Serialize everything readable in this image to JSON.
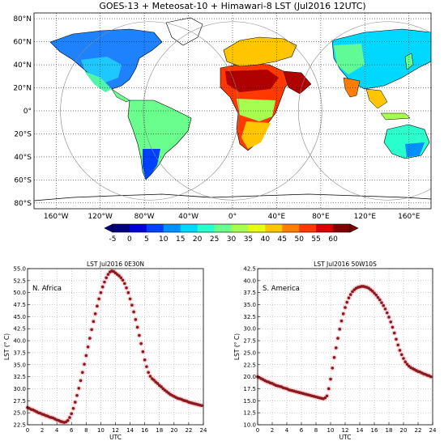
{
  "map": {
    "title": "GOES-13 + Meteosat-10 + Himawari-8 LST (Jul2016 12UTC)",
    "lon_ticks": [
      "160°W",
      "120°W",
      "80°W",
      "40°W",
      "0°",
      "40°E",
      "80°E",
      "120°E",
      "160°E"
    ],
    "lat_ticks": [
      "80°N",
      "60°N",
      "40°N",
      "20°N",
      "0°",
      "20°S",
      "40°S",
      "60°S",
      "80°S"
    ],
    "lon_values": [
      -160,
      -120,
      -80,
      -40,
      0,
      40,
      80,
      120,
      160
    ],
    "lat_values": [
      80,
      60,
      40,
      20,
      0,
      -20,
      -40,
      -60,
      -80
    ],
    "satellite_disk_centres_lon": [
      -75,
      0,
      140.7
    ]
  },
  "colorbar": {
    "ticks": [
      "-5",
      "0",
      "5",
      "10",
      "15",
      "20",
      "25",
      "30",
      "35",
      "40",
      "45",
      "50",
      "55",
      "60"
    ],
    "values": [
      -5,
      0,
      5,
      10,
      15,
      20,
      25,
      30,
      35,
      40,
      45,
      50,
      55,
      60
    ],
    "colors": [
      "#00007f",
      "#0000d8",
      "#0040ff",
      "#0090ff",
      "#00d8ff",
      "#29ffcd",
      "#6aff8c",
      "#a6ff50",
      "#e4ff13",
      "#ffc600",
      "#ff7e00",
      "#ff3900",
      "#d80000",
      "#7f0000"
    ]
  },
  "chart_data": [
    {
      "type": "scatter",
      "title": "LST Jul2016  0E30N",
      "annotation": "N. Africa",
      "xlabel": "UTC",
      "ylabel": "LST (° C)",
      "xlim": [
        0,
        24
      ],
      "ylim": [
        22.5,
        55.0
      ],
      "xticks": [
        0,
        2,
        4,
        6,
        8,
        10,
        12,
        14,
        16,
        18,
        20,
        22,
        24
      ],
      "yticks": [
        22.5,
        25.0,
        27.5,
        30.0,
        32.5,
        35.0,
        37.5,
        40.0,
        42.5,
        45.0,
        47.5,
        50.0,
        52.5,
        55.0
      ],
      "grid": true,
      "marker_color": "#8b1a1a",
      "x": [
        0,
        0.25,
        0.5,
        0.75,
        1,
        1.25,
        1.5,
        1.75,
        2,
        2.25,
        2.5,
        2.75,
        3,
        3.25,
        3.5,
        3.75,
        4,
        4.25,
        4.5,
        4.75,
        5,
        5.25,
        5.5,
        5.75,
        6,
        6.25,
        6.5,
        6.75,
        7,
        7.25,
        7.5,
        7.75,
        8,
        8.25,
        8.5,
        8.75,
        9,
        9.25,
        9.5,
        9.75,
        10,
        10.25,
        10.5,
        10.75,
        11,
        11.25,
        11.5,
        11.75,
        12,
        12.25,
        12.5,
        12.75,
        13,
        13.25,
        13.5,
        13.75,
        14,
        14.25,
        14.5,
        14.75,
        15,
        15.25,
        15.5,
        15.75,
        16,
        16.25,
        16.5,
        16.75,
        17,
        17.25,
        17.5,
        17.75,
        18,
        18.25,
        18.5,
        18.75,
        19,
        19.25,
        19.5,
        19.75,
        20,
        20.25,
        20.5,
        20.75,
        21,
        21.25,
        21.5,
        21.75,
        22,
        22.25,
        22.5,
        22.75,
        23,
        23.25,
        23.5,
        23.75
      ],
      "y": [
        26.1,
        25.9,
        25.7,
        25.6,
        25.4,
        25.2,
        25.0,
        24.9,
        24.7,
        24.6,
        24.4,
        24.3,
        24.1,
        24.0,
        23.9,
        23.7,
        23.5,
        23.4,
        23.2,
        23.1,
        23.0,
        23.1,
        23.4,
        24.0,
        24.8,
        25.9,
        27.2,
        28.6,
        30.1,
        31.7,
        33.4,
        35.1,
        36.9,
        38.7,
        40.5,
        42.3,
        44.0,
        45.6,
        47.2,
        48.7,
        50.0,
        51.2,
        52.2,
        53.1,
        53.8,
        54.3,
        54.5,
        54.4,
        54.1,
        53.8,
        53.5,
        53.1,
        52.6,
        51.9,
        51.0,
        50.0,
        48.7,
        47.4,
        46.0,
        44.4,
        42.8,
        41.1,
        39.4,
        37.7,
        36.0,
        34.6,
        33.4,
        32.6,
        32.1,
        31.8,
        31.4,
        31.1,
        30.7,
        30.4,
        30.0,
        29.7,
        29.4,
        29.1,
        28.8,
        28.6,
        28.4,
        28.2,
        28.0,
        27.9,
        27.8,
        27.6,
        27.5,
        27.4,
        27.2,
        27.1,
        27.0,
        26.9,
        26.8,
        26.7,
        26.6,
        26.5
      ]
    },
    {
      "type": "scatter",
      "title": "LST Jul2016  50W10S",
      "annotation": "S. America",
      "xlabel": "UTC",
      "ylabel": "LST (° C)",
      "xlim": [
        0,
        24
      ],
      "ylim": [
        10.0,
        42.5
      ],
      "xticks": [
        0,
        2,
        4,
        6,
        8,
        10,
        12,
        14,
        16,
        18,
        20,
        22,
        24
      ],
      "yticks": [
        10.0,
        12.5,
        15.0,
        17.5,
        20.0,
        22.5,
        25.0,
        27.5,
        30.0,
        32.5,
        35.0,
        37.5,
        40.0,
        42.5
      ],
      "grid": true,
      "marker_color": "#8b1a1a",
      "x": [
        0,
        0.25,
        0.5,
        0.75,
        1,
        1.25,
        1.5,
        1.75,
        2,
        2.25,
        2.5,
        2.75,
        3,
        3.25,
        3.5,
        3.75,
        4,
        4.25,
        4.5,
        4.75,
        5,
        5.25,
        5.5,
        5.75,
        6,
        6.25,
        6.5,
        6.75,
        7,
        7.25,
        7.5,
        7.75,
        8,
        8.25,
        8.5,
        8.75,
        9,
        9.25,
        9.5,
        9.75,
        10,
        10.25,
        10.5,
        10.75,
        11,
        11.25,
        11.5,
        11.75,
        12,
        12.25,
        12.5,
        12.75,
        13,
        13.25,
        13.5,
        13.75,
        14,
        14.25,
        14.5,
        14.75,
        15,
        15.25,
        15.5,
        15.75,
        16,
        16.25,
        16.5,
        16.75,
        17,
        17.25,
        17.5,
        17.75,
        18,
        18.25,
        18.5,
        18.75,
        19,
        19.25,
        19.5,
        19.75,
        20,
        20.25,
        20.5,
        20.75,
        21,
        21.25,
        21.5,
        21.75,
        22,
        22.25,
        22.5,
        22.75,
        23,
        23.25,
        23.5,
        23.75
      ],
      "y": [
        20.0,
        19.8,
        19.6,
        19.4,
        19.2,
        19.0,
        18.9,
        18.7,
        18.6,
        18.4,
        18.2,
        18.1,
        18.0,
        17.9,
        17.7,
        17.6,
        17.5,
        17.3,
        17.2,
        17.1,
        17.0,
        16.9,
        16.8,
        16.7,
        16.6,
        16.5,
        16.4,
        16.3,
        16.2,
        16.1,
        16.0,
        15.9,
        15.8,
        15.7,
        15.6,
        15.5,
        15.4,
        15.6,
        16.0,
        17.5,
        19.5,
        21.8,
        24.0,
        26.0,
        28.0,
        29.9,
        31.6,
        33.1,
        34.4,
        35.5,
        36.4,
        37.1,
        37.7,
        38.1,
        38.4,
        38.6,
        38.7,
        38.8,
        38.8,
        38.7,
        38.6,
        38.4,
        38.1,
        37.8,
        37.4,
        37.0,
        36.5,
        36.0,
        35.4,
        34.8,
        34.1,
        33.3,
        32.4,
        31.4,
        30.3,
        29.1,
        27.8,
        26.6,
        25.5,
        24.6,
        23.8,
        23.1,
        22.6,
        22.2,
        21.9,
        21.7,
        21.5,
        21.3,
        21.1,
        21.0,
        20.8,
        20.6,
        20.5,
        20.3,
        20.2,
        20.0
      ]
    }
  ]
}
